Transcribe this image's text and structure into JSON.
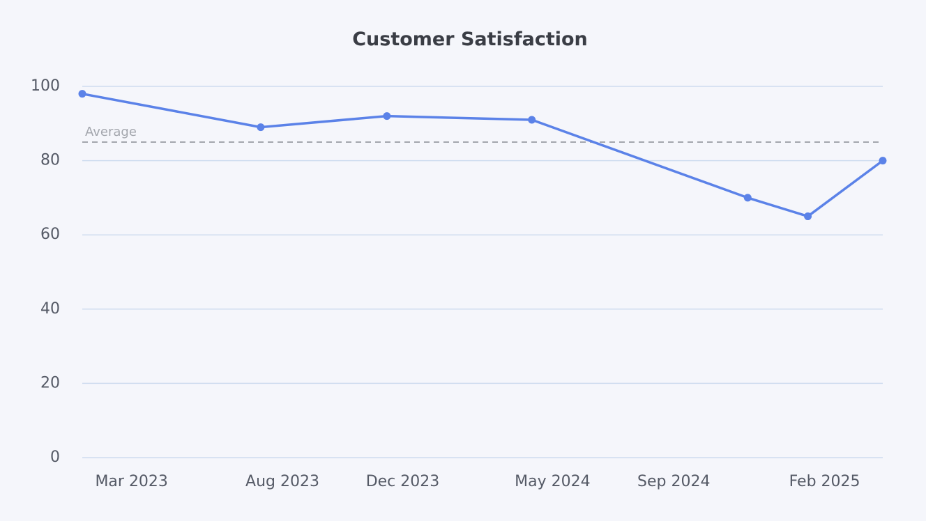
{
  "chart_data": {
    "type": "line",
    "title": "Customer Satisfaction",
    "xlabel": "",
    "ylabel": "",
    "ylim": [
      0,
      100
    ],
    "yticks": [
      0,
      20,
      40,
      60,
      80,
      100
    ],
    "xlim": [
      "2023-01-10",
      "2025-04-01"
    ],
    "xticks": [
      {
        "date": "2023-03-01",
        "label": "Mar 2023"
      },
      {
        "date": "2023-08-01",
        "label": "Aug 2023"
      },
      {
        "date": "2023-12-01",
        "label": "Dec 2023"
      },
      {
        "date": "2024-05-01",
        "label": "May 2024"
      },
      {
        "date": "2024-09-01",
        "label": "Sep 2024"
      },
      {
        "date": "2025-02-01",
        "label": "Feb 2025"
      }
    ],
    "series": [
      {
        "name": "Customer Satisfaction",
        "color": "#5b82e8",
        "points": [
          {
            "x": "2023-01-10",
            "y": 98
          },
          {
            "x": "2023-07-10",
            "y": 89
          },
          {
            "x": "2023-11-15",
            "y": 92
          },
          {
            "x": "2024-04-10",
            "y": 91
          },
          {
            "x": "2024-11-15",
            "y": 70
          },
          {
            "x": "2025-01-15",
            "y": 65
          },
          {
            "x": "2025-04-01",
            "y": 80
          }
        ]
      }
    ],
    "reference_line": {
      "label": "Average",
      "value": 85,
      "color": "#a3a6ad"
    },
    "grid": true,
    "grid_color": "#cfdcef",
    "background": "#f5f6fb"
  }
}
